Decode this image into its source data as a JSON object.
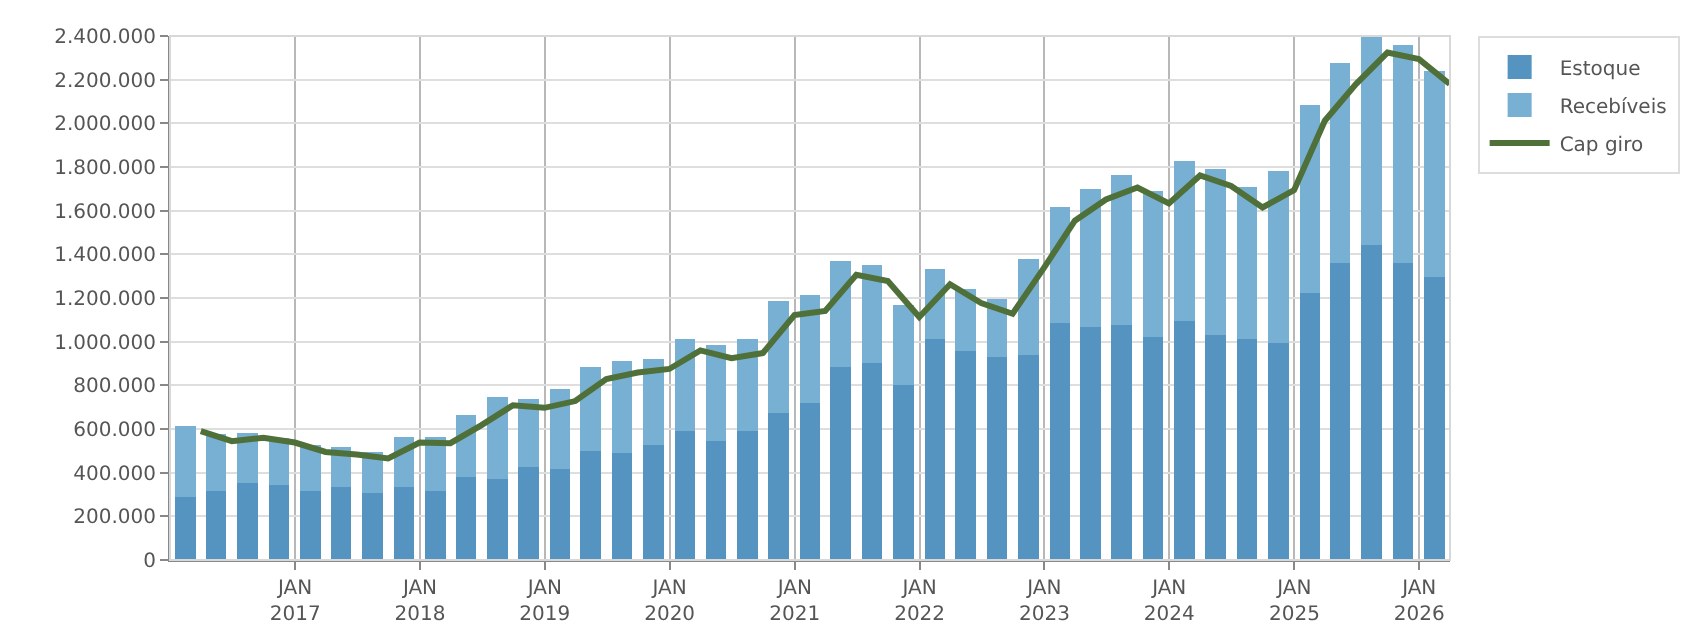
{
  "chart_data": {
    "type": "bar",
    "stacked": true,
    "x": [
      "2016-02-15",
      "2016-05-15",
      "2016-08-15",
      "2016-11-15",
      "2017-02-15",
      "2017-05-15",
      "2017-08-15",
      "2017-11-15",
      "2018-02-15",
      "2018-05-15",
      "2018-08-15",
      "2018-11-15",
      "2019-02-15",
      "2019-05-15",
      "2019-08-15",
      "2019-11-15",
      "2020-02-15",
      "2020-05-15",
      "2020-08-15",
      "2020-11-15",
      "2021-02-15",
      "2021-05-15",
      "2021-08-15",
      "2021-11-15",
      "2022-02-15",
      "2022-05-15",
      "2022-08-15",
      "2022-11-15",
      "2023-02-15",
      "2023-05-15",
      "2023-08-15",
      "2023-11-15",
      "2024-02-15",
      "2024-05-15",
      "2024-08-15",
      "2024-11-15",
      "2025-02-15",
      "2025-05-15",
      "2025-08-15",
      "2025-11-15",
      "2026-02-15"
    ],
    "series": [
      {
        "name": "Estoque",
        "color": "#5593c0",
        "values": [
          288000,
          315000,
          352000,
          343000,
          315000,
          333000,
          306000,
          333000,
          315000,
          379000,
          370000,
          425000,
          416000,
          498000,
          489000,
          526000,
          590000,
          544000,
          590000,
          673000,
          719000,
          884000,
          902000,
          801000,
          1012000,
          957000,
          930000,
          939000,
          1086000,
          1067000,
          1076000,
          1021000,
          1095000,
          1031000,
          1012000,
          994000,
          1223000,
          1361000,
          1443000,
          1361000,
          1297000
        ]
      },
      {
        "name": "Recebíveis",
        "color": "#77b0d3",
        "values": [
          327000,
          260000,
          229000,
          217000,
          211000,
          184000,
          189000,
          230000,
          248000,
          285000,
          376000,
          312000,
          367000,
          386000,
          422000,
          394000,
          422000,
          441000,
          422000,
          514000,
          495000,
          486000,
          450000,
          367000,
          321000,
          285000,
          266000,
          440000,
          532000,
          633000,
          689000,
          670000,
          734000,
          761000,
          697000,
          789000,
          863000,
          917000,
          955000,
          1000000,
          945000
        ]
      },
      {
        "name": "Cap giro",
        "type": "line",
        "color": "#50703a",
        "marker": "none",
        "line_style": "solid",
        "x": [
          "2016-03-31",
          "2016-06-30",
          "2016-09-30",
          "2016-12-31",
          "2017-03-31",
          "2017-06-30",
          "2017-09-30",
          "2017-12-31",
          "2018-03-31",
          "2018-06-30",
          "2018-09-30",
          "2018-12-31",
          "2019-03-31",
          "2019-06-30",
          "2019-09-30",
          "2019-12-31",
          "2020-03-31",
          "2020-06-30",
          "2020-09-30",
          "2020-12-31",
          "2021-03-31",
          "2021-06-30",
          "2021-09-30",
          "2021-12-31",
          "2022-03-31",
          "2022-06-30",
          "2022-09-30",
          "2022-12-31",
          "2023-03-31",
          "2023-06-30",
          "2023-09-30",
          "2023-12-31",
          "2024-03-31",
          "2024-06-30",
          "2024-09-30",
          "2024-12-31",
          "2025-03-31",
          "2025-06-30",
          "2025-09-30",
          "2025-12-31",
          "2026-03-31"
        ],
        "values": [
          590000,
          544000,
          560000,
          538000,
          495000,
          483000,
          465000,
          538000,
          535000,
          618000,
          709000,
          697000,
          728000,
          829000,
          859000,
          875000,
          960000,
          924000,
          948000,
          1122000,
          1141000,
          1306000,
          1278000,
          1113000,
          1263000,
          1177000,
          1128000,
          1339000,
          1554000,
          1651000,
          1706000,
          1633000,
          1761000,
          1713000,
          1615000,
          1694000,
          2012000,
          2180000,
          2324000,
          2294000,
          2180000
        ]
      }
    ],
    "xlim": [
      "2016-01-01",
      "2026-04-01"
    ],
    "xticks": [
      {
        "value": "2017-01-01",
        "label": "JAN\n2017"
      },
      {
        "value": "2018-01-01",
        "label": "JAN\n2018"
      },
      {
        "value": "2019-01-01",
        "label": "JAN\n2019"
      },
      {
        "value": "2020-01-01",
        "label": "JAN\n2020"
      },
      {
        "value": "2021-01-01",
        "label": "JAN\n2021"
      },
      {
        "value": "2022-01-01",
        "label": "JAN\n2022"
      },
      {
        "value": "2023-01-01",
        "label": "JAN\n2023"
      },
      {
        "value": "2024-01-01",
        "label": "JAN\n2024"
      },
      {
        "value": "2025-01-01",
        "label": "JAN\n2025"
      },
      {
        "value": "2026-01-01",
        "label": "JAN\n2026"
      }
    ],
    "ylim": [
      0,
      2400000
    ],
    "yticks": [
      0,
      {
        "value": 200000,
        "label": "200.000"
      },
      {
        "value": 400000,
        "label": "400.000"
      },
      {
        "value": 600000,
        "label": "600.000"
      },
      {
        "value": 800000,
        "label": "800.000"
      },
      {
        "value": 1000000,
        "label": "1.000.000"
      },
      {
        "value": 1200000,
        "label": "1.200.000"
      },
      {
        "value": 1400000,
        "label": "1.400.000"
      },
      {
        "value": 1600000,
        "label": "1.600.000"
      },
      {
        "value": 1800000,
        "label": "1.800.000"
      },
      {
        "value": 2000000,
        "label": "2.000.000"
      },
      {
        "value": 2200000,
        "label": "2.200.000"
      },
      {
        "value": 2400000,
        "label": "2.400.000"
      }
    ],
    "grid": true,
    "legend": "top right"
  }
}
